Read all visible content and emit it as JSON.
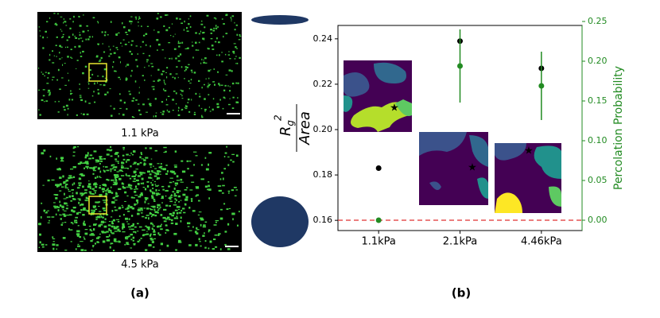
{
  "panel_a": {
    "images": [
      {
        "caption": "1.1 kPa"
      },
      {
        "caption": "4.5 kPa"
      }
    ],
    "label": "(a)"
  },
  "chart_data": {
    "type": "scatter",
    "label": "(b)",
    "categories": [
      "1.1kPa",
      "2.1kPa",
      "4.46kPa"
    ],
    "ylabel": {
      "numerator": "R",
      "subscript": "g",
      "superscript": "2",
      "denominator": "Area"
    },
    "y2label": "Percolation Probability",
    "ylim": [
      0.1555,
      0.2459
    ],
    "yticks": [
      0.16,
      0.18,
      {
        "value": 0.2,
        "label": "0.20"
      },
      0.22,
      0.24
    ],
    "y2lim": [
      -0.013,
      0.245
    ],
    "y2ticks": [
      {
        "value": 0,
        "label": "0.00"
      },
      0.05,
      {
        "value": 0.1,
        "label": "0.10"
      },
      0.15,
      {
        "value": 0.2,
        "label": "0.20"
      },
      0.25
    ],
    "y2color": "#228b22",
    "series": [
      {
        "color": "#000000",
        "values": [
          0.183,
          0.239,
          0.227
        ]
      },
      {
        "color": "#228b22",
        "axis": "y2",
        "values": [
          0,
          0.194,
          0.169
        ],
        "errors": [
          null,
          0.046,
          0.043
        ]
      }
    ],
    "hline": {
      "value": 0,
      "axis": "y2",
      "color": "#e03030"
    }
  }
}
